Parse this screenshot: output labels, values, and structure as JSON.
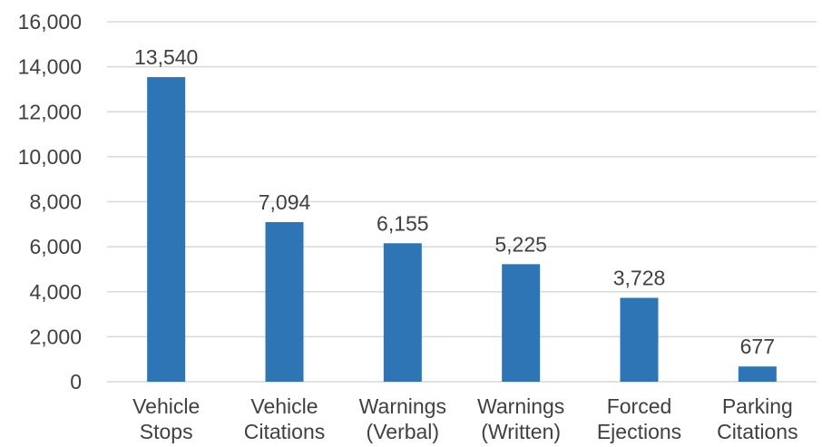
{
  "chart_data": {
    "type": "bar",
    "categories": [
      [
        "Vehicle",
        "Stops"
      ],
      [
        "Vehicle",
        "Citations"
      ],
      [
        "Warnings",
        "(Verbal)"
      ],
      [
        "Warnings",
        "(Written)"
      ],
      [
        "Forced",
        "Ejections"
      ],
      [
        "Parking",
        "Citations"
      ]
    ],
    "values": [
      13540,
      7094,
      6155,
      5225,
      3728,
      677
    ],
    "value_labels": [
      "13,540",
      "7,094",
      "6,155",
      "5,225",
      "3,728",
      "677"
    ],
    "ylim": [
      0,
      16000
    ],
    "yticks": [
      0,
      2000,
      4000,
      6000,
      8000,
      10000,
      12000,
      14000,
      16000
    ],
    "ytick_labels": [
      "0",
      "2,000",
      "4,000",
      "6,000",
      "8,000",
      "10,000",
      "12,000",
      "14,000",
      "16,000"
    ],
    "grid": true,
    "bar_color": "#2e75b6",
    "text_color": "#404040",
    "grid_color": "#d9d9d9"
  }
}
